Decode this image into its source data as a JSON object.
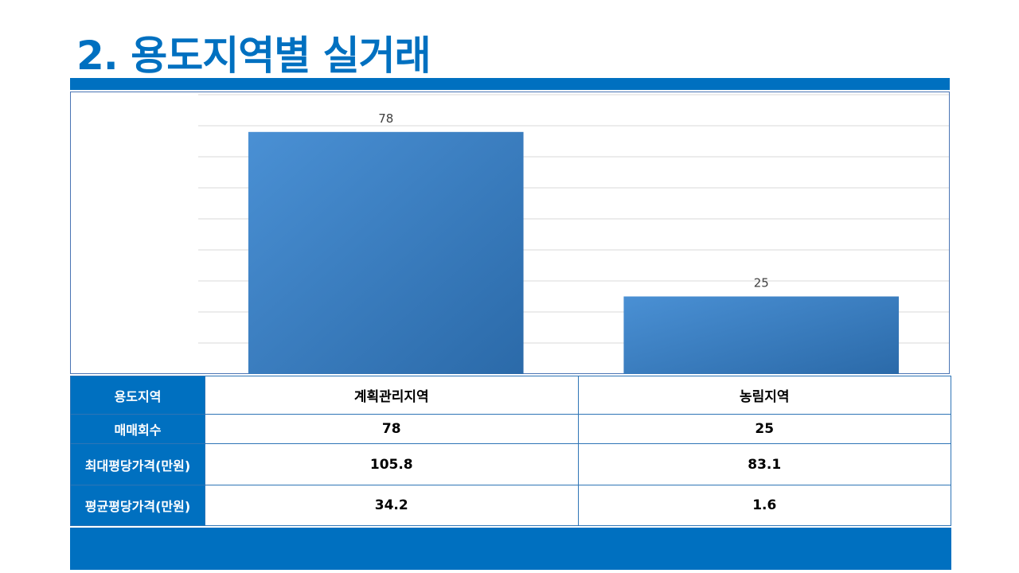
{
  "title": "2. 용도지역별 실거래",
  "colors": {
    "accent": "#0070c0",
    "bar_light": "#4a90d4",
    "bar_dark": "#2b6aa9",
    "grid": "#d9d9d9"
  },
  "chart_data": {
    "type": "bar",
    "categories": [
      "계획관리지역",
      "농림지역"
    ],
    "values": [
      78,
      25
    ],
    "data_labels": [
      "78",
      "25"
    ],
    "ylim": [
      0,
      90
    ],
    "gridline_step": 10,
    "grid": true,
    "legend": "none"
  },
  "table": {
    "rows": [
      {
        "header": "용도지역",
        "cells": [
          "계획관리지역",
          "농림지역"
        ]
      },
      {
        "header": "매매회수",
        "cells": [
          "78",
          "25"
        ]
      },
      {
        "header": "최대평당가격(만원)",
        "cells": [
          "105.8",
          "83.1"
        ]
      },
      {
        "header": "평균평당가격(만원)",
        "cells": [
          "34.2",
          "1.6"
        ]
      }
    ]
  }
}
